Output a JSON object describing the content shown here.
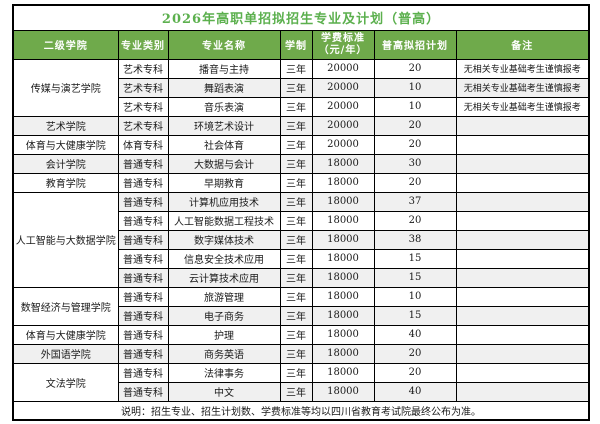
{
  "title": "2026年高职单招拟招生专业及计划（普高）",
  "header": {
    "college": "二级学院",
    "category": "专业类别",
    "major": "专业名称",
    "duration": "学制",
    "fee_line1": "学费标准",
    "fee_line2": "（元/年）",
    "plan": "普高拟招计划",
    "remark": "备注"
  },
  "colleges": [
    {
      "name": "传媒与演艺学院",
      "majors": [
        {
          "category": "艺术专科",
          "name": "播音与主持",
          "duration": "三年",
          "fee": "20000",
          "plan": "20",
          "remark": "无相关专业基础考生谨慎报考"
        },
        {
          "category": "艺术专科",
          "name": "舞蹈表演",
          "duration": "三年",
          "fee": "20000",
          "plan": "10",
          "remark": "无相关专业基础考生谨慎报考"
        },
        {
          "category": "艺术专科",
          "name": "音乐表演",
          "duration": "三年",
          "fee": "20000",
          "plan": "10",
          "remark": "无相关专业基础考生谨慎报考"
        }
      ]
    },
    {
      "name": "艺术学院",
      "majors": [
        {
          "category": "艺术专科",
          "name": "环境艺术设计",
          "duration": "三年",
          "fee": "20000",
          "plan": "20",
          "remark": ""
        }
      ]
    },
    {
      "name": "体育与大健康学院",
      "majors": [
        {
          "category": "体育专科",
          "name": "社会体育",
          "duration": "三年",
          "fee": "20000",
          "plan": "20",
          "remark": ""
        }
      ]
    },
    {
      "name": "会计学院",
      "majors": [
        {
          "category": "普通专科",
          "name": "大数据与会计",
          "duration": "三年",
          "fee": "18000",
          "plan": "30",
          "remark": ""
        }
      ]
    },
    {
      "name": "教育学院",
      "majors": [
        {
          "category": "普通专科",
          "name": "早期教育",
          "duration": "三年",
          "fee": "18000",
          "plan": "20",
          "remark": ""
        }
      ]
    },
    {
      "name": "人工智能与大数据学院",
      "majors": [
        {
          "category": "普通专科",
          "name": "计算机应用技术",
          "duration": "三年",
          "fee": "18000",
          "plan": "37",
          "remark": ""
        },
        {
          "category": "普通专科",
          "name": "人工智能数据工程技术",
          "duration": "三年",
          "fee": "18000",
          "plan": "20",
          "remark": ""
        },
        {
          "category": "普通专科",
          "name": "数字媒体技术",
          "duration": "三年",
          "fee": "18000",
          "plan": "38",
          "remark": ""
        },
        {
          "category": "普通专科",
          "name": "信息安全技术应用",
          "duration": "三年",
          "fee": "18000",
          "plan": "15",
          "remark": ""
        },
        {
          "category": "普通专科",
          "name": "云计算技术应用",
          "duration": "三年",
          "fee": "18000",
          "plan": "15",
          "remark": ""
        }
      ]
    },
    {
      "name": "数智经济与管理学院",
      "majors": [
        {
          "category": "普通专科",
          "name": "旅游管理",
          "duration": "三年",
          "fee": "18000",
          "plan": "10",
          "remark": ""
        },
        {
          "category": "普通专科",
          "name": "电子商务",
          "duration": "三年",
          "fee": "18000",
          "plan": "15",
          "remark": ""
        }
      ]
    },
    {
      "name": "体育与大健康学院",
      "majors": [
        {
          "category": "普通专科",
          "name": "护理",
          "duration": "三年",
          "fee": "18000",
          "plan": "40",
          "remark": ""
        }
      ]
    },
    {
      "name": "外国语学院",
      "majors": [
        {
          "category": "普通专科",
          "name": "商务英语",
          "duration": "三年",
          "fee": "18000",
          "plan": "20",
          "remark": ""
        }
      ]
    },
    {
      "name": "文法学院",
      "majors": [
        {
          "category": "普通专科",
          "name": "法律事务",
          "duration": "三年",
          "fee": "18000",
          "plan": "20",
          "remark": ""
        },
        {
          "category": "普通专科",
          "name": "中文",
          "duration": "三年",
          "fee": "18000",
          "plan": "40",
          "remark": ""
        }
      ]
    }
  ],
  "footer_note": "说明：招生专业、招生计划数、学费标准等均以四川省教育考试院最终公布为准。",
  "colors": {
    "header_bg": "#6faa4b",
    "title_text": "#5cb04e",
    "stripe": "#f0f0f0",
    "border": "#000000"
  }
}
